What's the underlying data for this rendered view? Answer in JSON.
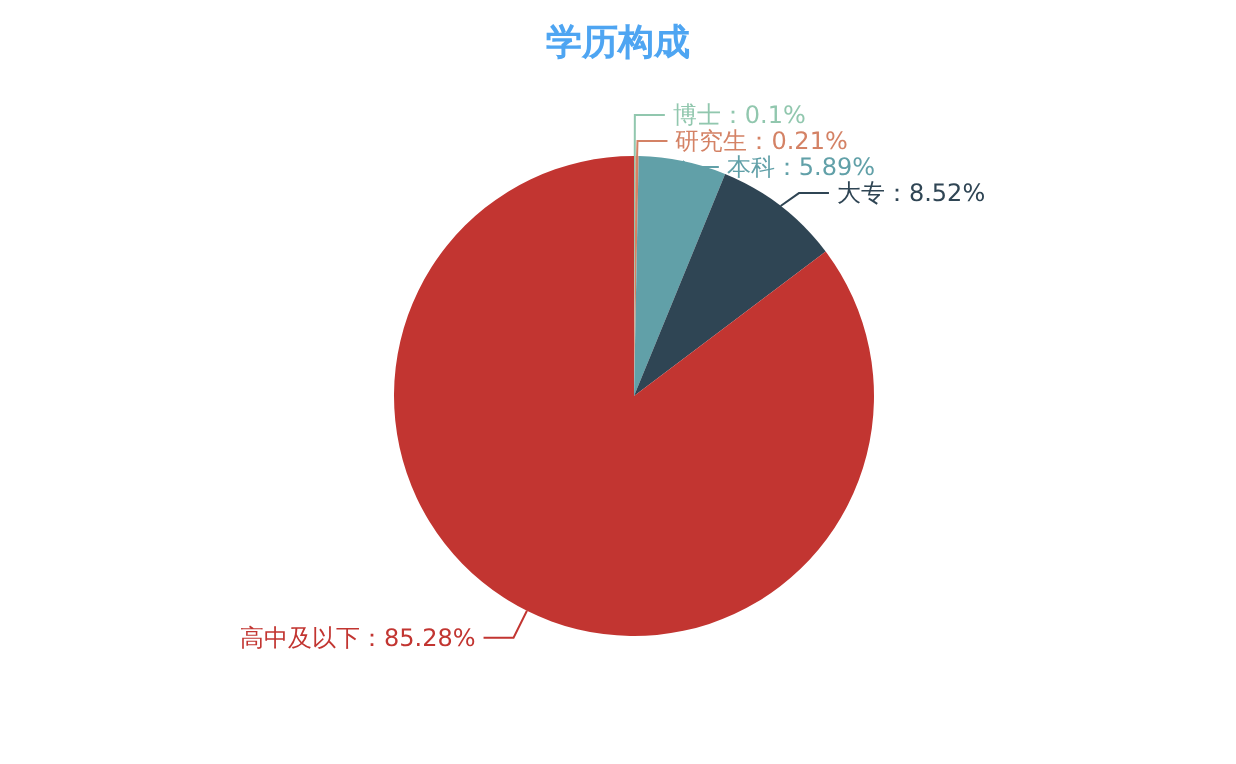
{
  "chart_data": {
    "type": "pie",
    "title": "学历构成",
    "categories": [
      "博士",
      "研究生",
      "本科",
      "大专",
      "高中及以下"
    ],
    "values": [
      0.1,
      0.21,
      5.89,
      8.52,
      85.28
    ],
    "value_labels": [
      "0.1%",
      "0.21%",
      "5.89%",
      "8.52%",
      "85.28%"
    ],
    "colors": [
      "#91c7ae",
      "#d48265",
      "#61a0a8",
      "#2f4554",
      "#c23531"
    ]
  }
}
